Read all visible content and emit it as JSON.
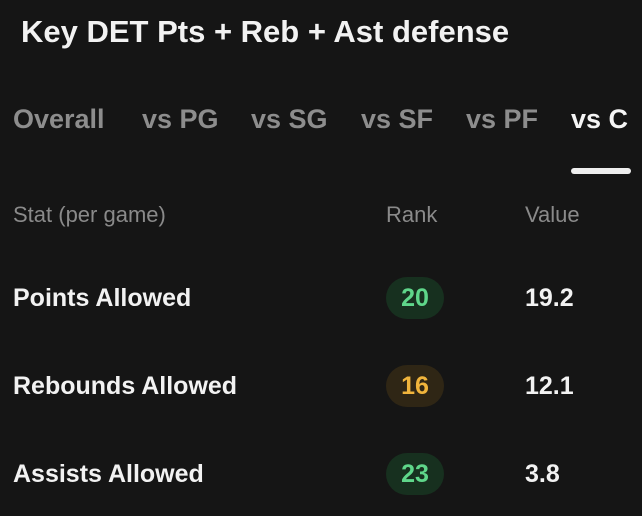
{
  "title": "Key DET Pts + Reb + Ast defense",
  "tabs": [
    {
      "label": "Overall",
      "active": false
    },
    {
      "label": "vs PG",
      "active": false
    },
    {
      "label": "vs SG",
      "active": false
    },
    {
      "label": "vs SF",
      "active": false
    },
    {
      "label": "vs PF",
      "active": false
    },
    {
      "label": "vs C",
      "active": true
    }
  ],
  "table": {
    "headers": {
      "stat": "Stat (per game)",
      "rank": "Rank",
      "value": "Value"
    },
    "rows": [
      {
        "stat": "Points Allowed",
        "rank": "20",
        "rank_color": "#5fd68a",
        "rank_bg": "#17301f",
        "value": "19.2"
      },
      {
        "stat": "Rebounds Allowed",
        "rank": "16",
        "rank_color": "#f0b43c",
        "rank_bg": "#2f2615",
        "value": "12.1"
      },
      {
        "stat": "Assists Allowed",
        "rank": "23",
        "rank_color": "#5fd68a",
        "rank_bg": "#17301f",
        "value": "3.8"
      }
    ]
  }
}
